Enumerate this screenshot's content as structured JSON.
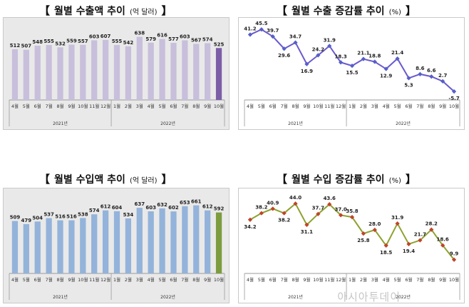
{
  "watermark": "아시아투데이",
  "panels": [
    {
      "title_text": "월별 수출액 추이",
      "title_unit": "(억 달러)"
    },
    {
      "title_text": "월별 수출 증감률 추이",
      "title_unit": "(%)"
    },
    {
      "title_text": "월별 수입액 추이",
      "title_unit": "(억 달러)"
    },
    {
      "title_text": "월별 수입 증감률 추이",
      "title_unit": "(%)"
    }
  ],
  "colors": {
    "export_bar": "#c8bfdc",
    "export_bar_last": "#7b5ea7",
    "export_line": "#6a5acd",
    "export_marker": "#5560c8",
    "import_bar": "#93b3da",
    "import_bar_last": "#7c9c3f",
    "import_line": "#8ca22e",
    "import_marker": "#c0442b"
  },
  "chart_data": [
    {
      "type": "bar",
      "categories": [
        "4월",
        "5월",
        "6월",
        "7월",
        "8월",
        "9월",
        "10월",
        "11월",
        "12월",
        "1월",
        "2월",
        "3월",
        "4월",
        "5월",
        "6월",
        "7월",
        "8월",
        "9월",
        "10월"
      ],
      "year_groups": [
        {
          "label": "2021년",
          "count": 9
        },
        {
          "label": "2022년",
          "count": 10
        }
      ],
      "values": [
        512,
        507,
        548,
        555,
        532,
        559,
        557,
        603,
        607,
        555,
        542,
        638,
        579,
        616,
        577,
        603,
        567,
        574,
        525
      ],
      "ylim": [
        0,
        700
      ],
      "title": "월별 수출액 추이",
      "unit": "(억 달러)"
    },
    {
      "type": "line",
      "categories": [
        "4월",
        "5월",
        "6월",
        "7월",
        "8월",
        "9월",
        "10월",
        "11월",
        "12월",
        "1월",
        "2월",
        "3월",
        "4월",
        "5월",
        "6월",
        "7월",
        "8월",
        "9월",
        "10월"
      ],
      "year_groups": [
        {
          "label": "2021년",
          "count": 9
        },
        {
          "label": "2022년",
          "count": 10
        }
      ],
      "values": [
        41.2,
        45.5,
        39.7,
        29.6,
        34.7,
        16.9,
        24.2,
        31.9,
        18.3,
        15.5,
        21.1,
        18.8,
        12.9,
        21.4,
        5.3,
        8.6,
        6.6,
        2.7,
        -5.7
      ],
      "ylim": [
        -8,
        48
      ],
      "title": "월별 수출 증감률 추이",
      "unit": "(%)"
    },
    {
      "type": "bar",
      "categories": [
        "4월",
        "5월",
        "6월",
        "7월",
        "8월",
        "9월",
        "10월",
        "11월",
        "12월",
        "1월",
        "2월",
        "3월",
        "4월",
        "5월",
        "6월",
        "7월",
        "8월",
        "9월",
        "10월"
      ],
      "year_groups": [
        {
          "label": "2021년",
          "count": 9
        },
        {
          "label": "2022년",
          "count": 10
        }
      ],
      "values": [
        509,
        479,
        504,
        537,
        516,
        516,
        538,
        574,
        612,
        604,
        534,
        637,
        603,
        632,
        602,
        653,
        661,
        612,
        592
      ],
      "ylim": [
        0,
        700
      ],
      "title": "월별 수입액 추이",
      "unit": "(억 달러)"
    },
    {
      "type": "line",
      "categories": [
        "4월",
        "5월",
        "6월",
        "7월",
        "8월",
        "9월",
        "10월",
        "11월",
        "12월",
        "1월",
        "2월",
        "3월",
        "4월",
        "5월",
        "6월",
        "7월",
        "8월",
        "9월",
        "10월"
      ],
      "year_groups": [
        {
          "label": "2021년",
          "count": 9
        },
        {
          "label": "2022년",
          "count": 10
        }
      ],
      "values": [
        34.2,
        38.2,
        40.9,
        38.2,
        44.0,
        31.1,
        37.7,
        43.6,
        37.0,
        35.8,
        25.8,
        28.0,
        18.5,
        31.9,
        19.4,
        21.7,
        28.2,
        18.6,
        9.9
      ],
      "ylim": [
        5,
        48
      ],
      "title": "월별 수입 증감률 추이",
      "unit": "(%)"
    }
  ]
}
